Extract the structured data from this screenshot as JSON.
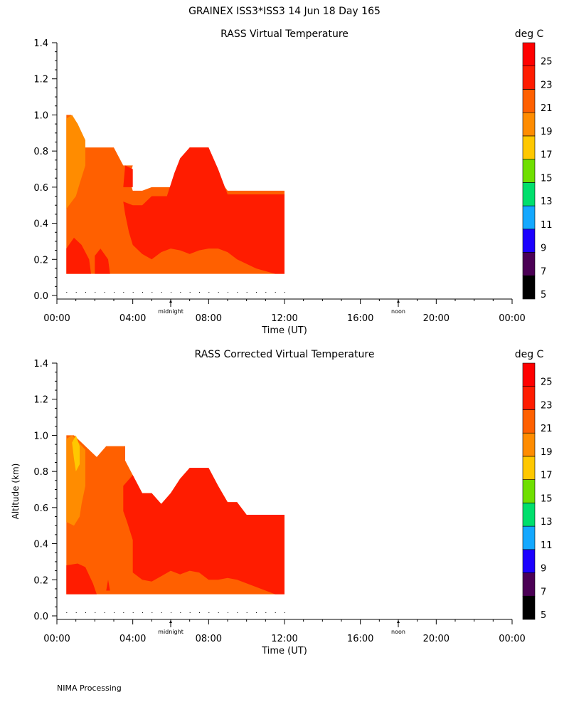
{
  "page": {
    "title": "GRAINEX ISS3*ISS3  14 Jun 18 Day 165",
    "footer": "NIMA Processing"
  },
  "colorbar": {
    "unit_label": "deg C",
    "tick_labels": [
      "5",
      "7",
      "9",
      "11",
      "13",
      "15",
      "17",
      "19",
      "21",
      "23",
      "25"
    ],
    "levels": [
      5,
      7,
      9,
      11,
      13,
      15,
      17,
      19,
      21,
      23,
      25,
      27
    ],
    "colors": [
      "#000000",
      "#4b0055",
      "#1c00ff",
      "#14a8ff",
      "#00df6c",
      "#6fdf00",
      "#ffc800",
      "#ff8c00",
      "#ff6000",
      "#ff1c00",
      "#ff0000"
    ]
  },
  "chart_data": [
    {
      "type": "contour",
      "title": "RASS Virtual Temperature",
      "xlabel": "Time (UT)",
      "ylabel": "",
      "x_ticks": [
        "00:00",
        "04:00",
        "08:00",
        "12:00",
        "16:00",
        "20:00",
        "00:00"
      ],
      "x_markers": [
        "midnight",
        "noon"
      ],
      "y_ticks": [
        "0.0",
        "0.2",
        "0.4",
        "0.6",
        "0.8",
        "1.0",
        "1.2",
        "1.4"
      ],
      "xlim": [
        0,
        24
      ],
      "ylim": [
        0,
        1.4
      ],
      "regions": [
        {
          "temp_range": "21-23",
          "polygon": [
            [
              0.5,
              1.0
            ],
            [
              0.75,
              1.0
            ],
            [
              1.1,
              0.95
            ],
            [
              1.5,
              0.82
            ],
            [
              3.0,
              0.82
            ],
            [
              3.5,
              0.72
            ],
            [
              4.0,
              0.72
            ],
            [
              3.8,
              0.65
            ],
            [
              4.0,
              0.58
            ],
            [
              4.5,
              0.58
            ],
            [
              5.0,
              0.6
            ],
            [
              6.0,
              0.6
            ],
            [
              6.5,
              0.72
            ],
            [
              7.0,
              0.82
            ],
            [
              8.0,
              0.82
            ],
            [
              8.5,
              0.65
            ],
            [
              9.0,
              0.58
            ],
            [
              12.0,
              0.58
            ],
            [
              12.0,
              0.12
            ],
            [
              0.5,
              0.12
            ]
          ]
        },
        {
          "temp_range": "23-25",
          "polygon": [
            [
              3.5,
              0.6
            ],
            [
              4.0,
              0.6
            ],
            [
              4.0,
              0.7
            ],
            [
              3.6,
              0.72
            ]
          ]
        },
        {
          "temp_range": "23-25",
          "polygon": [
            [
              4.0,
              0.5
            ],
            [
              4.5,
              0.5
            ],
            [
              5.0,
              0.55
            ],
            [
              5.8,
              0.55
            ],
            [
              6.2,
              0.68
            ],
            [
              6.5,
              0.76
            ],
            [
              7.0,
              0.82
            ],
            [
              8.0,
              0.82
            ],
            [
              8.5,
              0.7
            ],
            [
              9.0,
              0.56
            ],
            [
              12.0,
              0.56
            ],
            [
              12.0,
              0.12
            ],
            [
              11.5,
              0.12
            ],
            [
              10.5,
              0.15
            ],
            [
              9.5,
              0.2
            ],
            [
              9.0,
              0.24
            ],
            [
              8.5,
              0.26
            ],
            [
              8.0,
              0.26
            ],
            [
              7.5,
              0.25
            ],
            [
              7.0,
              0.23
            ],
            [
              6.5,
              0.25
            ],
            [
              6.0,
              0.26
            ],
            [
              5.5,
              0.24
            ],
            [
              5.0,
              0.2
            ],
            [
              4.5,
              0.23
            ],
            [
              4.0,
              0.28
            ],
            [
              3.8,
              0.35
            ],
            [
              3.6,
              0.45
            ],
            [
              3.5,
              0.52
            ]
          ]
        },
        {
          "temp_range": "23-25",
          "polygon": [
            [
              0.5,
              0.26
            ],
            [
              0.9,
              0.32
            ],
            [
              1.3,
              0.28
            ],
            [
              1.7,
              0.2
            ],
            [
              1.8,
              0.12
            ],
            [
              0.5,
              0.12
            ]
          ]
        },
        {
          "temp_range": "23-25",
          "polygon": [
            [
              2.0,
              0.12
            ],
            [
              2.0,
              0.22
            ],
            [
              2.3,
              0.26
            ],
            [
              2.7,
              0.2
            ],
            [
              2.8,
              0.12
            ]
          ]
        },
        {
          "temp_range": "19-21",
          "polygon": [
            [
              0.5,
              0.98
            ],
            [
              0.8,
              1.0
            ],
            [
              1.1,
              0.95
            ],
            [
              1.5,
              0.86
            ],
            [
              1.5,
              0.72
            ],
            [
              1.2,
              0.62
            ],
            [
              1.0,
              0.55
            ],
            [
              0.5,
              0.48
            ]
          ]
        }
      ]
    },
    {
      "type": "contour",
      "title": "RASS Corrected Virtual Temperature",
      "xlabel": "Time (UT)",
      "ylabel": "Altitude (km)",
      "x_ticks": [
        "00:00",
        "04:00",
        "08:00",
        "12:00",
        "16:00",
        "20:00",
        "00:00"
      ],
      "x_markers": [
        "midnight",
        "noon"
      ],
      "y_ticks": [
        "0.0",
        "0.2",
        "0.4",
        "0.6",
        "0.8",
        "1.0",
        "1.2",
        "1.4"
      ],
      "xlim": [
        0,
        24
      ],
      "ylim": [
        0,
        1.4
      ],
      "regions": [
        {
          "temp_range": "21-23",
          "polygon": [
            [
              0.5,
              1.0
            ],
            [
              0.9,
              1.0
            ],
            [
              2.1,
              0.88
            ],
            [
              2.6,
              0.94
            ],
            [
              3.6,
              0.94
            ],
            [
              3.6,
              0.86
            ],
            [
              4.0,
              0.78
            ],
            [
              4.5,
              0.68
            ],
            [
              5.0,
              0.68
            ],
            [
              5.5,
              0.62
            ],
            [
              6.0,
              0.68
            ],
            [
              6.5,
              0.76
            ],
            [
              7.0,
              0.82
            ],
            [
              8.0,
              0.82
            ],
            [
              8.5,
              0.72
            ],
            [
              9.0,
              0.63
            ],
            [
              9.5,
              0.63
            ],
            [
              10.0,
              0.56
            ],
            [
              12.0,
              0.56
            ],
            [
              12.0,
              0.12
            ],
            [
              0.5,
              0.12
            ]
          ]
        },
        {
          "temp_range": "23-25",
          "polygon": [
            [
              3.5,
              0.72
            ],
            [
              4.0,
              0.78
            ],
            [
              4.5,
              0.68
            ],
            [
              5.0,
              0.68
            ],
            [
              5.5,
              0.62
            ],
            [
              6.0,
              0.68
            ],
            [
              6.5,
              0.76
            ],
            [
              7.0,
              0.82
            ],
            [
              8.0,
              0.82
            ],
            [
              8.5,
              0.72
            ],
            [
              9.0,
              0.63
            ],
            [
              9.5,
              0.63
            ],
            [
              10.0,
              0.56
            ],
            [
              12.0,
              0.56
            ],
            [
              12.0,
              0.12
            ],
            [
              11.5,
              0.12
            ],
            [
              10.5,
              0.16
            ],
            [
              9.5,
              0.2
            ],
            [
              9.0,
              0.21
            ],
            [
              8.5,
              0.2
            ],
            [
              8.0,
              0.2
            ],
            [
              7.5,
              0.24
            ],
            [
              7.0,
              0.25
            ],
            [
              6.5,
              0.23
            ],
            [
              6.0,
              0.25
            ],
            [
              5.5,
              0.22
            ],
            [
              5.0,
              0.19
            ],
            [
              4.5,
              0.2
            ],
            [
              4.0,
              0.24
            ],
            [
              4.0,
              0.42
            ],
            [
              3.7,
              0.52
            ],
            [
              3.5,
              0.58
            ]
          ]
        },
        {
          "temp_range": "23-25",
          "polygon": [
            [
              0.5,
              0.28
            ],
            [
              1.1,
              0.29
            ],
            [
              1.5,
              0.27
            ],
            [
              1.9,
              0.18
            ],
            [
              2.1,
              0.12
            ],
            [
              0.5,
              0.12
            ]
          ]
        },
        {
          "temp_range": "23-25",
          "polygon": [
            [
              2.6,
              0.14
            ],
            [
              2.7,
              0.2
            ],
            [
              2.8,
              0.14
            ]
          ]
        },
        {
          "temp_range": "19-21",
          "polygon": [
            [
              0.5,
              0.98
            ],
            [
              0.8,
              1.0
            ],
            [
              1.5,
              0.92
            ],
            [
              1.5,
              0.72
            ],
            [
              1.3,
              0.62
            ],
            [
              1.2,
              0.55
            ],
            [
              0.9,
              0.5
            ],
            [
              0.5,
              0.52
            ]
          ]
        },
        {
          "temp_range": "17-19",
          "polygon": [
            [
              0.8,
              0.96
            ],
            [
              1.0,
              1.0
            ],
            [
              1.2,
              0.94
            ],
            [
              1.2,
              0.84
            ],
            [
              1.0,
              0.8
            ],
            [
              0.9,
              0.87
            ]
          ]
        }
      ]
    }
  ]
}
